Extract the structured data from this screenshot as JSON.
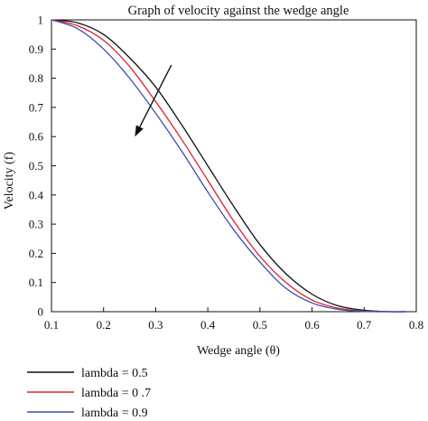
{
  "chart_data": {
    "type": "line",
    "title": "Graph of velocity against the wedge angle",
    "xlabel": "Wedge angle (θ)",
    "ylabel": "Velocity (f)",
    "xlim": [
      0.1,
      0.8
    ],
    "ylim": [
      0,
      1
    ],
    "xticks": [
      "0.1",
      "0.2",
      "0.3",
      "0.4",
      "0.5",
      "0.6",
      "0.7",
      "0.8"
    ],
    "yticks": [
      "0",
      "0.1",
      "0.2",
      "0.3",
      "0.4",
      "0.5",
      "0.6",
      "0.7",
      "0.8",
      "0.9",
      "1"
    ],
    "grid": false,
    "legend_position": "bottom-left",
    "x": [
      0.1,
      0.15,
      0.2,
      0.25,
      0.3,
      0.35,
      0.4,
      0.45,
      0.5,
      0.55,
      0.6,
      0.65,
      0.7,
      0.75,
      0.78
    ],
    "series": [
      {
        "name": "lambda = 0.5",
        "color": "#111111",
        "values": [
          1.0,
          0.99,
          0.95,
          0.87,
          0.77,
          0.64,
          0.5,
          0.36,
          0.23,
          0.13,
          0.06,
          0.02,
          0.005,
          0.0,
          0.0
        ]
      },
      {
        "name": "lambda = 0 .7",
        "color": "#e0202a",
        "values": [
          1.0,
          0.98,
          0.93,
          0.84,
          0.72,
          0.59,
          0.45,
          0.31,
          0.19,
          0.1,
          0.04,
          0.012,
          0.002,
          0.0,
          0.0
        ]
      },
      {
        "name": "lambda = 0.9",
        "color": "#3a4fb0",
        "values": [
          1.0,
          0.97,
          0.9,
          0.8,
          0.68,
          0.55,
          0.41,
          0.28,
          0.17,
          0.08,
          0.03,
          0.008,
          0.001,
          0.0,
          0.0
        ]
      }
    ],
    "annotation": {
      "type": "arrow",
      "from": [
        0.33,
        0.845
      ],
      "to": [
        0.26,
        0.6
      ]
    }
  }
}
